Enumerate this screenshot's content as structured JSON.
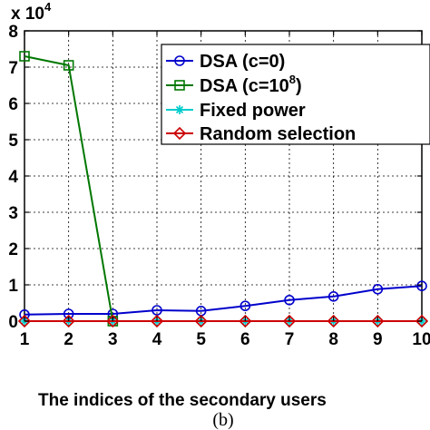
{
  "chart_data": {
    "type": "line",
    "multiplier": {
      "base": "x 10",
      "exponent": "4"
    },
    "xlabel": "The indices of the secondary users",
    "ylabel": "",
    "caption": "(b)",
    "x": [
      1,
      2,
      3,
      4,
      5,
      6,
      7,
      8,
      9,
      10
    ],
    "x_ticks": [
      "1",
      "2",
      "3",
      "4",
      "5",
      "6",
      "7",
      "8",
      "9",
      "10"
    ],
    "y_ticks": [
      "0",
      "1",
      "2",
      "3",
      "4",
      "5",
      "6",
      "7",
      "8"
    ],
    "xlim": [
      1,
      10
    ],
    "ylim": [
      0,
      8
    ],
    "grid": true,
    "legend_position": "top-right",
    "series": [
      {
        "name": "DSA (c=0)",
        "name_base": "DSA (c=0)",
        "name_sup": "",
        "name_tail": "",
        "color": "#0000cc",
        "marker": "circle",
        "values": [
          0.18,
          0.2,
          0.2,
          0.3,
          0.28,
          0.42,
          0.58,
          0.68,
          0.88,
          0.97
        ]
      },
      {
        "name": "DSA (c=10^8)",
        "name_base": "DSA (c=10",
        "name_sup": "8",
        "name_tail": ")",
        "color": "#007700",
        "marker": "square",
        "values": [
          7.3,
          7.05,
          0.0,
          null,
          null,
          null,
          null,
          null,
          null,
          null
        ]
      },
      {
        "name": "Fixed power",
        "name_base": "Fixed power",
        "name_sup": "",
        "name_tail": "",
        "color": "#00cccc",
        "marker": "star",
        "values": [
          0,
          0,
          0,
          0,
          0,
          0,
          0,
          0,
          0,
          0
        ]
      },
      {
        "name": "Random selection",
        "name_base": "Random selection",
        "name_sup": "",
        "name_tail": "",
        "color": "#cc0000",
        "marker": "diamond",
        "values": [
          0,
          0,
          0,
          0,
          0,
          0,
          0,
          0,
          0,
          0
        ]
      }
    ]
  }
}
